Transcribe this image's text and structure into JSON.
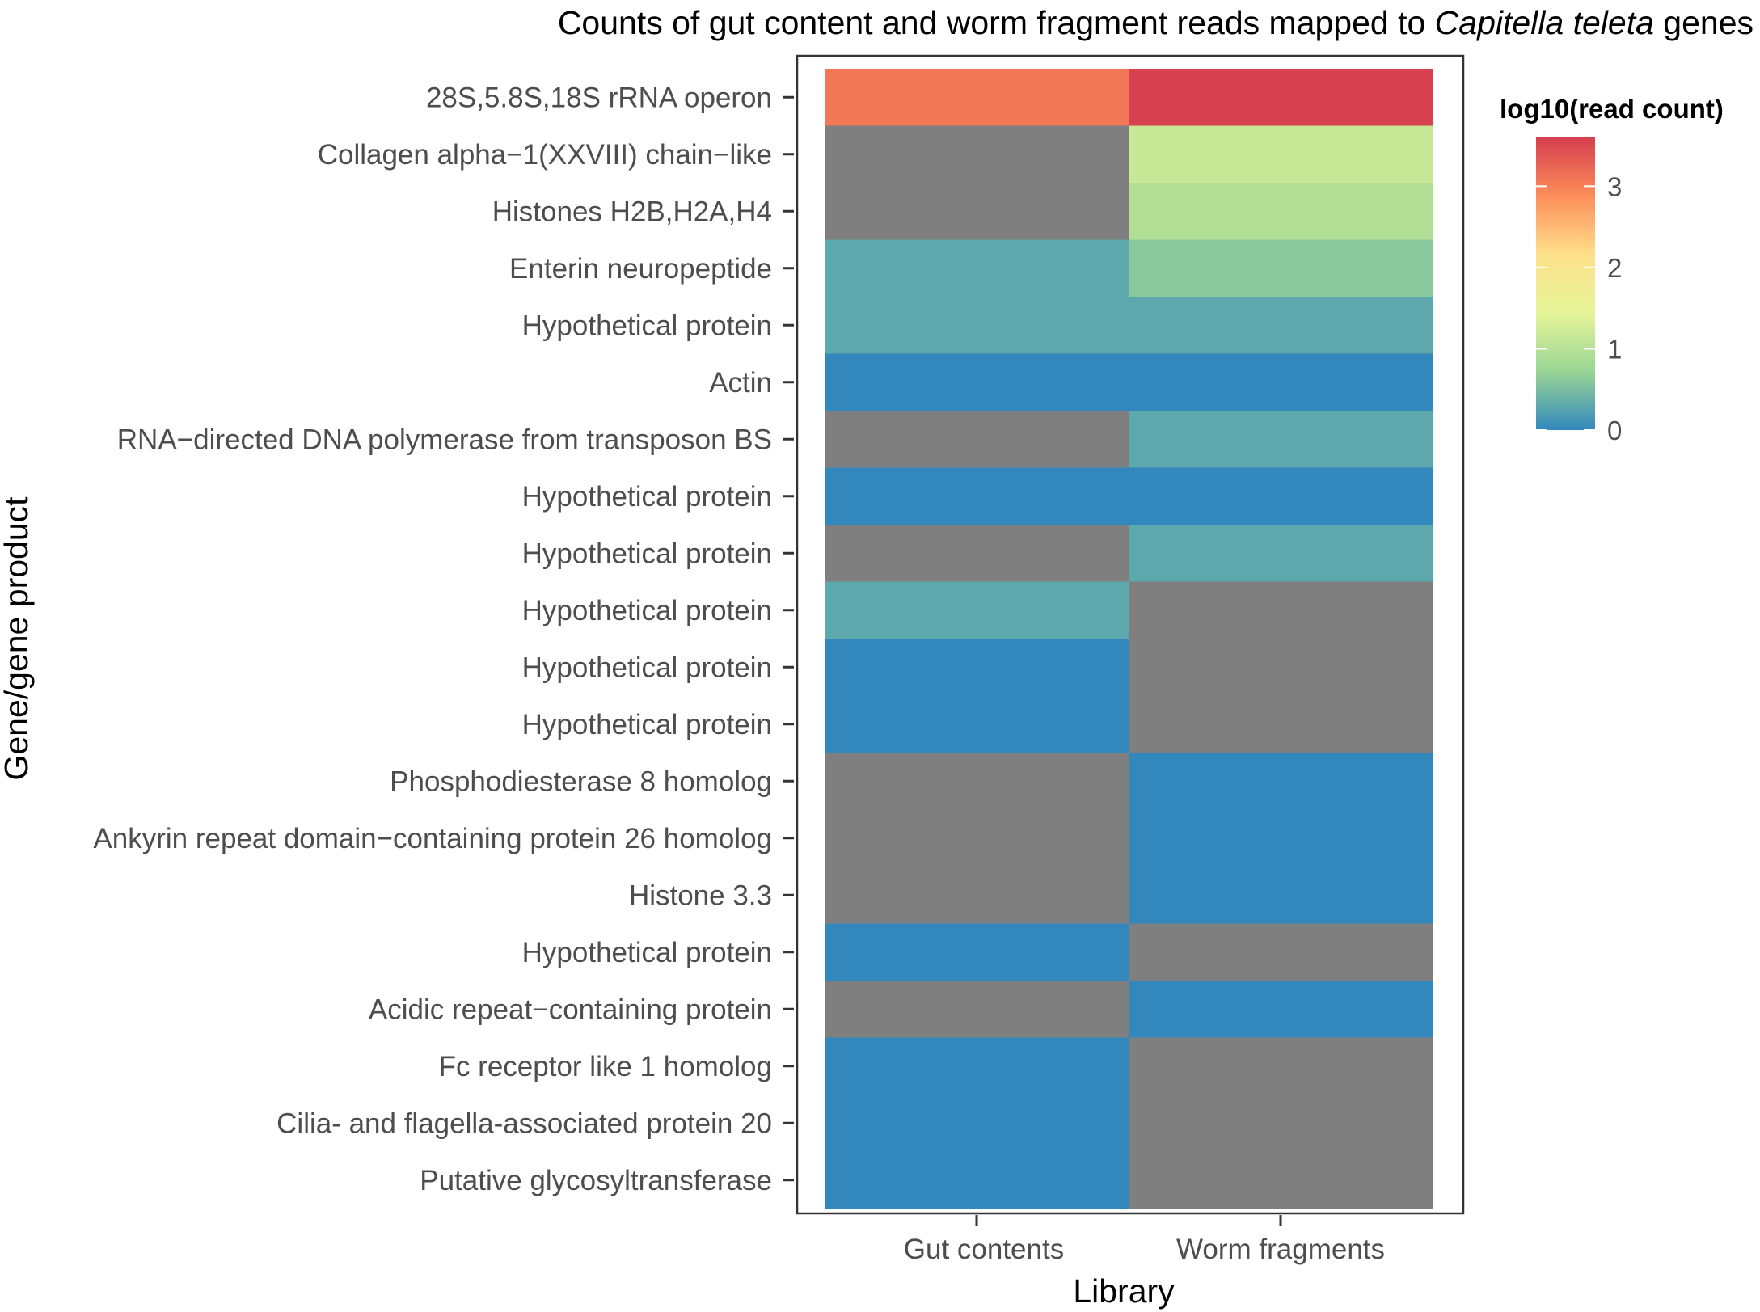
{
  "colors": {
    "na": "#7f7f7f",
    "scale": [
      "#3288bd",
      "#99d594",
      "#e6f598",
      "#fee08b",
      "#fc8d59",
      "#d53e4f"
    ],
    "panel_border": "#333333",
    "axis": "#333333"
  },
  "chart_data": {
    "type": "heatmap",
    "title_parts": [
      {
        "text": "Counts of gut content and worm fragment reads mapped to ",
        "italic": false
      },
      {
        "text": "Capitella teleta",
        "italic": true
      },
      {
        "text": " genes",
        "italic": false
      }
    ],
    "xlabel": "Library",
    "ylabel": "Gene/gene product",
    "columns": [
      "Gut contents",
      "Worm fragments"
    ],
    "rows": [
      "28S,5.8S,18S rRNA operon",
      "Collagen alpha−1(XXVIII) chain−like",
      "Histones H2B,H2A,H4",
      "Enterin neuropeptide",
      "Hypothetical protein",
      "Actin",
      "RNA−directed DNA polymerase from transposon BS",
      "Hypothetical protein",
      "Hypothetical protein",
      "Hypothetical protein",
      "Hypothetical protein",
      "Hypothetical protein",
      "Phosphodiesterase 8 homolog",
      "Ankyrin repeat domain−containing protein 26 homolog",
      "Histone 3.3",
      "Hypothetical protein",
      "Acidic repeat−containing protein",
      "Fc receptor like 1 homolog",
      "Cilia- and flagella-associated protein 20",
      "Putative glycosyltransferase"
    ],
    "values": [
      [
        3.08,
        3.56
      ],
      [
        null,
        1.15
      ],
      [
        null,
        0.95
      ],
      [
        0.3,
        0.6
      ],
      [
        0.3,
        0.3
      ],
      [
        0,
        0
      ],
      [
        null,
        0.3
      ],
      [
        0,
        0
      ],
      [
        null,
        0.3
      ],
      [
        0.3,
        null
      ],
      [
        0,
        null
      ],
      [
        0,
        null
      ],
      [
        null,
        0
      ],
      [
        null,
        0
      ],
      [
        null,
        0
      ],
      [
        0,
        null
      ],
      [
        null,
        0
      ],
      [
        0,
        null
      ],
      [
        0,
        null
      ],
      [
        0,
        null
      ]
    ],
    "legend": {
      "title": "log10(read count)",
      "range": [
        0,
        3.6
      ],
      "ticks": [
        0,
        1,
        2,
        3
      ],
      "tick_labels": [
        "0",
        "1",
        "2",
        "3"
      ]
    }
  }
}
